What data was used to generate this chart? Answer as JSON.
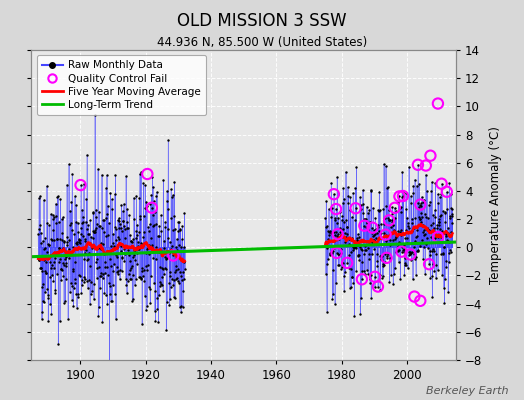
{
  "title": "OLD MISSION 3 SSW",
  "subtitle": "44.936 N, 85.500 W (United States)",
  "ylabel": "Temperature Anomaly (°C)",
  "watermark": "Berkeley Earth",
  "xlim": [
    1885,
    2015
  ],
  "ylim": [
    -8,
    14
  ],
  "yticks": [
    -8,
    -6,
    -4,
    -2,
    0,
    2,
    4,
    6,
    8,
    10,
    12,
    14
  ],
  "xticks": [
    1900,
    1920,
    1940,
    1960,
    1980,
    2000
  ],
  "bg_color": "#d8d8d8",
  "plot_bg_color": "#e8e8e8",
  "raw_color": "#4444ff",
  "raw_dot_color": "#000000",
  "qc_color": "#ff00ff",
  "ma_color": "#ff0000",
  "trend_color": "#00bb00",
  "period1_start": 1887,
  "period1_end": 1931,
  "period2_start": 1975,
  "period2_end": 2013,
  "seed": 42,
  "std1": 2.5,
  "std2": 2.0
}
